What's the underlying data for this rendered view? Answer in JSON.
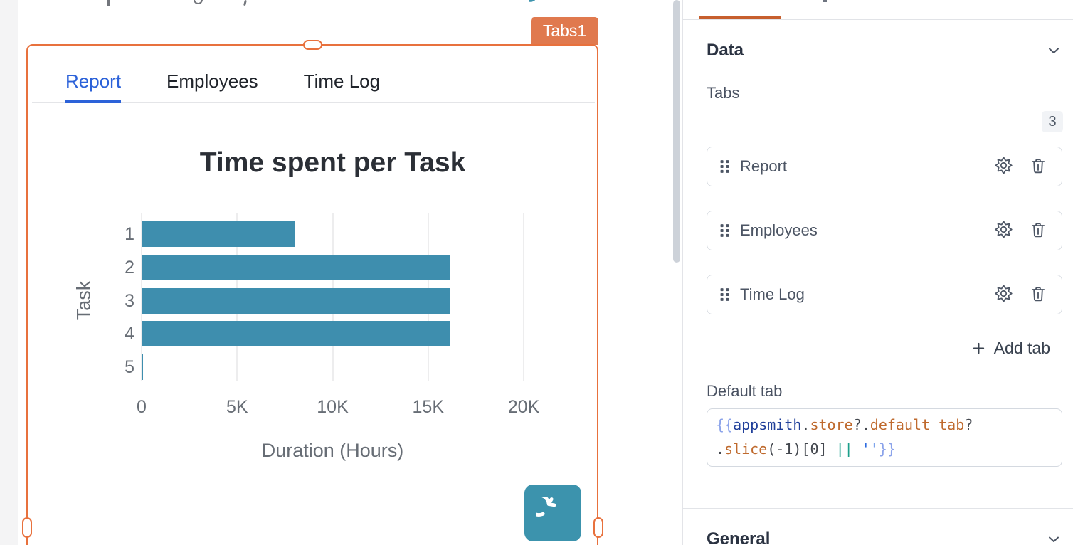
{
  "canvas": {
    "selected_widget_name": "Tabs1",
    "tab_bar": {
      "tabs": [
        {
          "label": "Report",
          "active": true
        },
        {
          "label": "Employees",
          "active": false
        },
        {
          "label": "Time Log",
          "active": false
        }
      ]
    },
    "chart_data": {
      "type": "bar",
      "orientation": "horizontal",
      "title": "Time spent per Task",
      "categories": [
        "1",
        "2",
        "3",
        "4",
        "5"
      ],
      "values": [
        8060,
        16140,
        16140,
        16140,
        60
      ],
      "xlabel": "Duration (Hours)",
      "ylabel": "Task",
      "xlim": [
        0,
        20000
      ],
      "xticks": {
        "labels": [
          "0",
          "5K",
          "10K",
          "15K",
          "20K"
        ],
        "values": [
          0,
          5000,
          10000,
          15000,
          20000
        ]
      },
      "bar_color": "#3e8eae",
      "grid": true,
      "legend": false
    },
    "colors": {
      "selection_orange": "#e8713d",
      "badge_orange": "#e0794e",
      "active_tab_blue": "#2c62d9",
      "refresh_button_teal": "#3c93ad"
    }
  },
  "property_pane": {
    "active_tab_underline_color": "#c75f2e",
    "sections": {
      "data": {
        "title": "Data",
        "tabs_field": {
          "label": "Tabs",
          "count_badge": "3",
          "items": [
            {
              "label": "Report"
            },
            {
              "label": "Employees"
            },
            {
              "label": "Time Log"
            }
          ],
          "add_button_label": "Add tab"
        },
        "default_tab_field": {
          "label": "Default tab",
          "code_value": "{{appsmith.store?.default_tab?.slice(-1)[0] || ''}}",
          "code_lines": [
            [
              {
                "t": "{{",
                "c": "brace"
              },
              {
                "t": "appsmith",
                "c": "global"
              },
              {
                "t": ".",
                "c": "plain"
              },
              {
                "t": "store",
                "c": "prop"
              },
              {
                "t": "?.",
                "c": "plain"
              },
              {
                "t": "default_tab",
                "c": "prop"
              },
              {
                "t": "?",
                "c": "plain"
              }
            ],
            [
              {
                "t": ".",
                "c": "plain"
              },
              {
                "t": "slice",
                "c": "prop"
              },
              {
                "t": "(-1)[0] ",
                "c": "plain"
              },
              {
                "t": "|| ",
                "c": "op"
              },
              {
                "t": "''",
                "c": "string"
              },
              {
                "t": "}}",
                "c": "brace"
              }
            ]
          ]
        }
      },
      "general": {
        "title": "General"
      }
    },
    "code_colors": {
      "brace": "#8ba3ea",
      "global": "#21409a",
      "prop": "#bf6a2e",
      "plain": "#43474e",
      "op": "#1d9f8b",
      "string": "#2e6ce0"
    }
  }
}
